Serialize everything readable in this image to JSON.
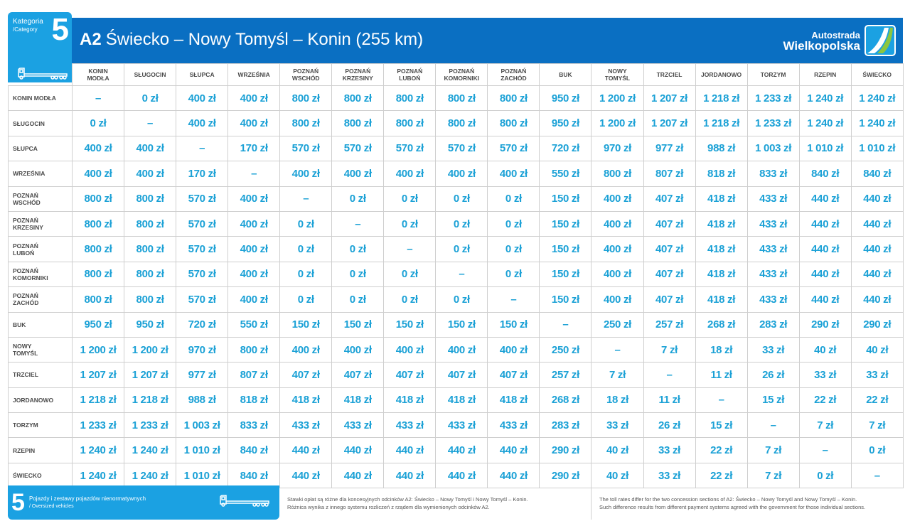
{
  "category": {
    "label": "Kategoria",
    "label_en": "/Category",
    "number": "5"
  },
  "header": {
    "road": "A2",
    "title": "Świecko – Nowy Tomyśl – Konin (255 km)"
  },
  "logo": {
    "line1": "Autostrada",
    "line2": "Wielkopolska"
  },
  "table": {
    "columns": [
      [
        "KONIN",
        "MODŁA"
      ],
      [
        "SŁUGOCIN"
      ],
      [
        "SŁUPCA"
      ],
      [
        "WRZEŚNIA"
      ],
      [
        "POZNAŃ",
        "WSCHÓD"
      ],
      [
        "POZNAŃ",
        "KRZESINY"
      ],
      [
        "POZNAŃ",
        "LUBOŃ"
      ],
      [
        "POZNAŃ",
        "KOMORNIKI"
      ],
      [
        "POZNAŃ",
        "ZACHÓD"
      ],
      [
        "BUK"
      ],
      [
        "NOWY",
        "TOMYŚL"
      ],
      [
        "TRZCIEL"
      ],
      [
        "JORDANOWO"
      ],
      [
        "TORZYM"
      ],
      [
        "RZEPIN"
      ],
      [
        "ŚWIECKO"
      ]
    ],
    "rows": [
      {
        "label": [
          "KONIN MODŁA"
        ],
        "values": [
          "–",
          "0 zł",
          "400 zł",
          "400 zł",
          "800 zł",
          "800 zł",
          "800 zł",
          "800 zł",
          "800 zł",
          "950 zł",
          "1 200 zł",
          "1 207 zł",
          "1 218 zł",
          "1 233 zł",
          "1 240 zł",
          "1 240 zł"
        ]
      },
      {
        "label": [
          "SŁUGOCIN"
        ],
        "values": [
          "0 zł",
          "–",
          "400 zł",
          "400 zł",
          "800 zł",
          "800 zł",
          "800 zł",
          "800 zł",
          "800 zł",
          "950 zł",
          "1 200 zł",
          "1 207 zł",
          "1 218 zł",
          "1 233 zł",
          "1 240 zł",
          "1 240 zł"
        ]
      },
      {
        "label": [
          "SŁUPCA"
        ],
        "values": [
          "400 zł",
          "400 zł",
          "–",
          "170 zł",
          "570 zł",
          "570 zł",
          "570 zł",
          "570 zł",
          "570 zł",
          "720 zł",
          "970 zł",
          "977 zł",
          "988 zł",
          "1 003 zł",
          "1 010 zł",
          "1 010 zł"
        ]
      },
      {
        "label": [
          "WRZEŚNIA"
        ],
        "values": [
          "400 zł",
          "400 zł",
          "170 zł",
          "–",
          "400 zł",
          "400 zł",
          "400 zł",
          "400 zł",
          "400 zł",
          "550 zł",
          "800 zł",
          "807 zł",
          "818 zł",
          "833 zł",
          "840 zł",
          "840 zł"
        ]
      },
      {
        "label": [
          "POZNAŃ",
          "WSCHÓD"
        ],
        "values": [
          "800 zł",
          "800 zł",
          "570 zł",
          "400 zł",
          "–",
          "0 zł",
          "0 zł",
          "0 zł",
          "0 zł",
          "150 zł",
          "400 zł",
          "407 zł",
          "418 zł",
          "433 zł",
          "440 zł",
          "440 zł"
        ]
      },
      {
        "label": [
          "POZNAŃ",
          "KRZESINY"
        ],
        "values": [
          "800 zł",
          "800 zł",
          "570 zł",
          "400 zł",
          "0 zł",
          "–",
          "0 zł",
          "0 zł",
          "0 zł",
          "150 zł",
          "400 zł",
          "407 zł",
          "418 zł",
          "433 zł",
          "440 zł",
          "440 zł"
        ]
      },
      {
        "label": [
          "POZNAŃ",
          "LUBOŃ"
        ],
        "values": [
          "800 zł",
          "800 zł",
          "570 zł",
          "400 zł",
          "0 zł",
          "0 zł",
          "–",
          "0 zł",
          "0 zł",
          "150 zł",
          "400 zł",
          "407 zł",
          "418 zł",
          "433 zł",
          "440 zł",
          "440 zł"
        ]
      },
      {
        "label": [
          "POZNAŃ",
          "KOMORNIKI"
        ],
        "values": [
          "800 zł",
          "800 zł",
          "570 zł",
          "400 zł",
          "0 zł",
          "0 zł",
          "0 zł",
          "–",
          "0 zł",
          "150 zł",
          "400 zł",
          "407 zł",
          "418 zł",
          "433 zł",
          "440 zł",
          "440 zł"
        ]
      },
      {
        "label": [
          "POZNAŃ",
          "ZACHÓD"
        ],
        "values": [
          "800 zł",
          "800 zł",
          "570 zł",
          "400 zł",
          "0 zł",
          "0 zł",
          "0 zł",
          "0 zł",
          "–",
          "150 zł",
          "400 zł",
          "407 zł",
          "418 zł",
          "433 zł",
          "440 zł",
          "440 zł"
        ]
      },
      {
        "label": [
          "BUK"
        ],
        "values": [
          "950 zł",
          "950 zł",
          "720 zł",
          "550 zł",
          "150 zł",
          "150 zł",
          "150 zł",
          "150 zł",
          "150 zł",
          "–",
          "250 zł",
          "257 zł",
          "268 zł",
          "283 zł",
          "290 zł",
          "290 zł"
        ]
      },
      {
        "label": [
          "NOWY",
          "TOMYŚL"
        ],
        "values": [
          "1 200 zł",
          "1 200 zł",
          "970 zł",
          "800 zł",
          "400 zł",
          "400 zł",
          "400 zł",
          "400 zł",
          "400 zł",
          "250 zł",
          "–",
          "7 zł",
          "18 zł",
          "33 zł",
          "40 zł",
          "40 zł"
        ]
      },
      {
        "label": [
          "TRZCIEL"
        ],
        "values": [
          "1 207 zł",
          "1 207 zł",
          "977 zł",
          "807 zł",
          "407 zł",
          "407 zł",
          "407 zł",
          "407 zł",
          "407 zł",
          "257 zł",
          "7 zł",
          "–",
          "11 zł",
          "26 zł",
          "33 zł",
          "33 zł"
        ]
      },
      {
        "label": [
          "JORDANOWO"
        ],
        "values": [
          "1 218 zł",
          "1 218 zł",
          "988 zł",
          "818 zł",
          "418 zł",
          "418 zł",
          "418 zł",
          "418 zł",
          "418 zł",
          "268 zł",
          "18 zł",
          "11 zł",
          "–",
          "15 zł",
          "22 zł",
          "22 zł"
        ]
      },
      {
        "label": [
          "TORZYM"
        ],
        "values": [
          "1 233 zł",
          "1 233 zł",
          "1 003 zł",
          "833 zł",
          "433 zł",
          "433 zł",
          "433 zł",
          "433 zł",
          "433 zł",
          "283 zł",
          "33 zł",
          "26 zł",
          "15 zł",
          "–",
          "7 zł",
          "7 zł"
        ]
      },
      {
        "label": [
          "RZEPIN"
        ],
        "values": [
          "1 240 zł",
          "1 240 zł",
          "1 010 zł",
          "840 zł",
          "440 zł",
          "440 zł",
          "440 zł",
          "440 zł",
          "440 zł",
          "290 zł",
          "40 zł",
          "33 zł",
          "22 zł",
          "7 zł",
          "–",
          "0 zł"
        ]
      },
      {
        "label": [
          "ŚWIECKO"
        ],
        "values": [
          "1 240 zł",
          "1 240 zł",
          "1 010 zł",
          "840 zł",
          "440 zł",
          "440 zł",
          "440 zł",
          "440 zł",
          "440 zł",
          "290 zł",
          "40 zł",
          "33 zł",
          "22 zł",
          "7 zł",
          "0 zł",
          "–"
        ]
      }
    ]
  },
  "footer": {
    "number": "5",
    "label": "Pojazdy i zestawy pojazdów nienormatywnych",
    "label_en": "/ Oversized vehicles",
    "note_pl": [
      "Stawki opłat są różne dla koncesyjnych odcinków A2: Świecko – Nowy Tomyśl i Nowy Tomyśl – Konin.",
      "Różnica wynika z innego systemu rozliczeń z rządem dla wymienionych odcinków A2."
    ],
    "note_en": [
      "The toll rates differ for the two concession sections of A2: Świecko – Nowy Tomyśl and Nowy Tomyśl – Konin.",
      "Such difference results from different payment systems agreed with the government for those individual sections."
    ]
  },
  "colors": {
    "header_blue": "#0a6fc2",
    "category_blue": "#1ba1e2",
    "value_text": "#1ba1d6",
    "logo_green": "#8cc63f"
  }
}
